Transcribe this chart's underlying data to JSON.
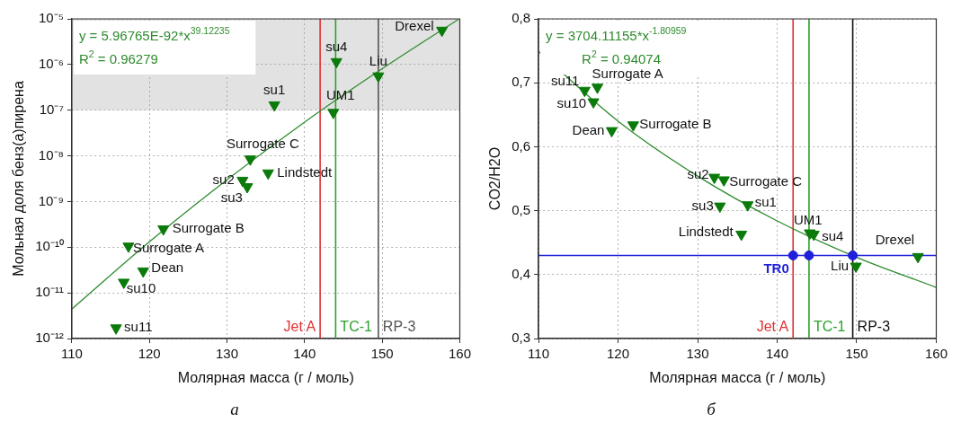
{
  "chart_data": [
    {
      "type": "scatter",
      "title": "а",
      "xlabel": "Молярная масса (г / моль)",
      "ylabel": "Мольная доля бенз(а)пирена",
      "log": "y",
      "grid": true,
      "legend": false,
      "xlim": [
        110,
        160
      ],
      "xticks": [
        110,
        120,
        130,
        140,
        150,
        160
      ],
      "ylim": [
        1e-12,
        1e-05
      ],
      "yticks": [
        {
          "value": 1e-12,
          "label": "10⁻¹²"
        },
        {
          "value": 1e-11,
          "label": "10⁻¹¹"
        },
        {
          "value": 1e-10,
          "label": "10⁻¹⁰"
        },
        {
          "value": 1e-09,
          "label": "10⁻⁹"
        },
        {
          "value": 1e-08,
          "label": "10⁻⁸"
        },
        {
          "value": 1e-07,
          "label": "10⁻⁷"
        },
        {
          "value": 1e-06,
          "label": "10⁻⁶"
        },
        {
          "value": 1e-05,
          "label": "10⁻⁵"
        }
      ],
      "series": [
        {
          "type": "scatter",
          "marker": "triangle",
          "color": "#0a7a0a",
          "x": [
            157.7,
            144.1,
            149.5,
            136.1,
            143.7,
            133.0,
            135.3,
            132.0,
            132.6,
            121.8,
            117.3,
            119.2,
            116.7,
            115.7
          ],
          "values": [
            5.6e-06,
            1.15e-06,
            5.6e-07,
            1.3e-07,
            8.9e-08,
            8.5e-09,
            4.2e-09,
            2.9e-09,
            2.1e-09,
            2.5e-10,
            1.05e-10,
            3e-11,
            1.7e-11,
            1.7e-12
          ]
        },
        {
          "type": "line",
          "marker": "none",
          "color": "#2e8b2e",
          "x": [
            110,
            120,
            130,
            140,
            150,
            159.8
          ],
          "values": [
            4.4e-12,
            1.31e-10,
            3e-09,
            5.5e-08,
            8.1e-07,
            9.7e-06
          ]
        }
      ],
      "bands": [
        {
          "axis": "y",
          "from": 1e-07,
          "to": 1e-05,
          "color": "#a0a0a0"
        }
      ],
      "ref_lines": [
        {
          "axis": "x",
          "value": 142,
          "label": "Jet A",
          "color": "#e03030"
        },
        {
          "axis": "x",
          "value": 144,
          "label": "TC-1",
          "color": "#2ca02c"
        },
        {
          "axis": "x",
          "value": 149.5,
          "label": "RP-3",
          "color": "#555555"
        }
      ],
      "annotations": [
        "y = 5.96765E-92*x$^{39.12235}$",
        "R$^{2}$ = 0.96279",
        {
          "text": "Drexel",
          "x": 157.7,
          "y": 5.6e-06
        },
        {
          "text": "su4",
          "x": 144.1,
          "y": 1.15e-06
        },
        {
          "text": "Liu",
          "x": 149.5,
          "y": 5.6e-07
        },
        {
          "text": "su1",
          "x": 136.1,
          "y": 1.3e-07
        },
        {
          "text": "UM1",
          "x": 143.7,
          "y": 8.9e-08
        },
        {
          "text": "Surrogate C",
          "x": 133.0,
          "y": 8.5e-09
        },
        {
          "text": "Lindstedt",
          "x": 135.3,
          "y": 4.2e-09
        },
        {
          "text": "su2",
          "x": 132.0,
          "y": 2.9e-09
        },
        {
          "text": "su3",
          "x": 132.6,
          "y": 2.1e-09
        },
        {
          "text": "Surrogate B",
          "x": 121.8,
          "y": 2.5e-10
        },
        {
          "text": "Surrogate A",
          "x": 117.3,
          "y": 1.05e-10
        },
        {
          "text": "Dean",
          "x": 119.2,
          "y": 3e-11
        },
        {
          "text": "su10",
          "x": 116.7,
          "y": 1.7e-11
        },
        {
          "text": "su11",
          "x": 115.7,
          "y": 1.7e-12
        }
      ]
    },
    {
      "type": "scatter",
      "title": "б",
      "xlabel": "Молярная масса (г / моль)",
      "ylabel": "CO2/H2O",
      "grid": true,
      "legend": false,
      "xlim": [
        110,
        160
      ],
      "xticks": [
        110,
        120,
        130,
        140,
        150,
        160
      ],
      "ylim": [
        0.3,
        0.8
      ],
      "yticks": [
        {
          "value": 0.3,
          "label": "0,3"
        },
        {
          "value": 0.4,
          "label": "0,4"
        },
        {
          "value": 0.5,
          "label": "0,5"
        },
        {
          "value": 0.6,
          "label": "0,6"
        },
        {
          "value": 0.7,
          "label": "0,7"
        },
        {
          "value": 0.8,
          "label": "0,8"
        }
      ],
      "series": [
        {
          "type": "line",
          "marker": "none",
          "color": "#2e8b2e",
          "x": [
            110,
            120,
            130,
            140,
            150,
            160
          ],
          "values": [
            0.749,
            0.64,
            0.554,
            0.484,
            0.427,
            0.38
          ]
        },
        {
          "type": "scatter",
          "marker": "triangle",
          "color": "#0a7a0a",
          "x": [
            115.8,
            117.4,
            116.9,
            119.2,
            121.9,
            132.1,
            133.3,
            132.8,
            136.3,
            135.5,
            144.1,
            144.6,
            149.9,
            157.7
          ],
          "values": [
            0.688,
            0.693,
            0.67,
            0.625,
            0.634,
            0.552,
            0.548,
            0.507,
            0.509,
            0.463,
            0.465,
            0.463,
            0.413,
            0.428
          ]
        },
        {
          "type": "scatter",
          "marker": "circle",
          "color": "#1f1fdc",
          "x": [
            142,
            144,
            149.5
          ],
          "values": [
            0.43,
            0.43,
            0.43
          ]
        }
      ],
      "ref_lines": [
        {
          "axis": "y",
          "value": 0.43,
          "label": "TR0",
          "color": "#1f1fdc"
        },
        {
          "axis": "x",
          "value": 142,
          "label": "Jet A",
          "color": "#e03030"
        },
        {
          "axis": "x",
          "value": 144,
          "label": "TC-1",
          "color": "#2ca02c"
        },
        {
          "axis": "x",
          "value": 149.5,
          "label": "RP-3",
          "color": "#111111"
        }
      ],
      "annotations": [
        "y = 3704.11155*x$^{-1.80959}$",
        "R$^{2}$ = 0.94074",
        {
          "text": "su11",
          "x": 115.8,
          "y": 0.688
        },
        {
          "text": "Surrogate A",
          "x": 117.4,
          "y": 0.693
        },
        {
          "text": "su10",
          "x": 116.9,
          "y": 0.67
        },
        {
          "text": "Dean",
          "x": 119.2,
          "y": 0.625
        },
        {
          "text": "Surrogate B",
          "x": 121.9,
          "y": 0.634
        },
        {
          "text": "su2",
          "x": 132.1,
          "y": 0.552
        },
        {
          "text": "Surrogate C",
          "x": 133.3,
          "y": 0.548
        },
        {
          "text": "su3",
          "x": 132.8,
          "y": 0.507
        },
        {
          "text": "su1",
          "x": 136.3,
          "y": 0.509
        },
        {
          "text": "Lindstedt",
          "x": 135.5,
          "y": 0.463
        },
        {
          "text": "UM1",
          "x": 144.1,
          "y": 0.465
        },
        {
          "text": "su4",
          "x": 144.6,
          "y": 0.463
        },
        {
          "text": "Liu",
          "x": 149.9,
          "y": 0.413
        },
        {
          "text": "Drexel",
          "x": 157.7,
          "y": 0.428
        }
      ]
    }
  ]
}
